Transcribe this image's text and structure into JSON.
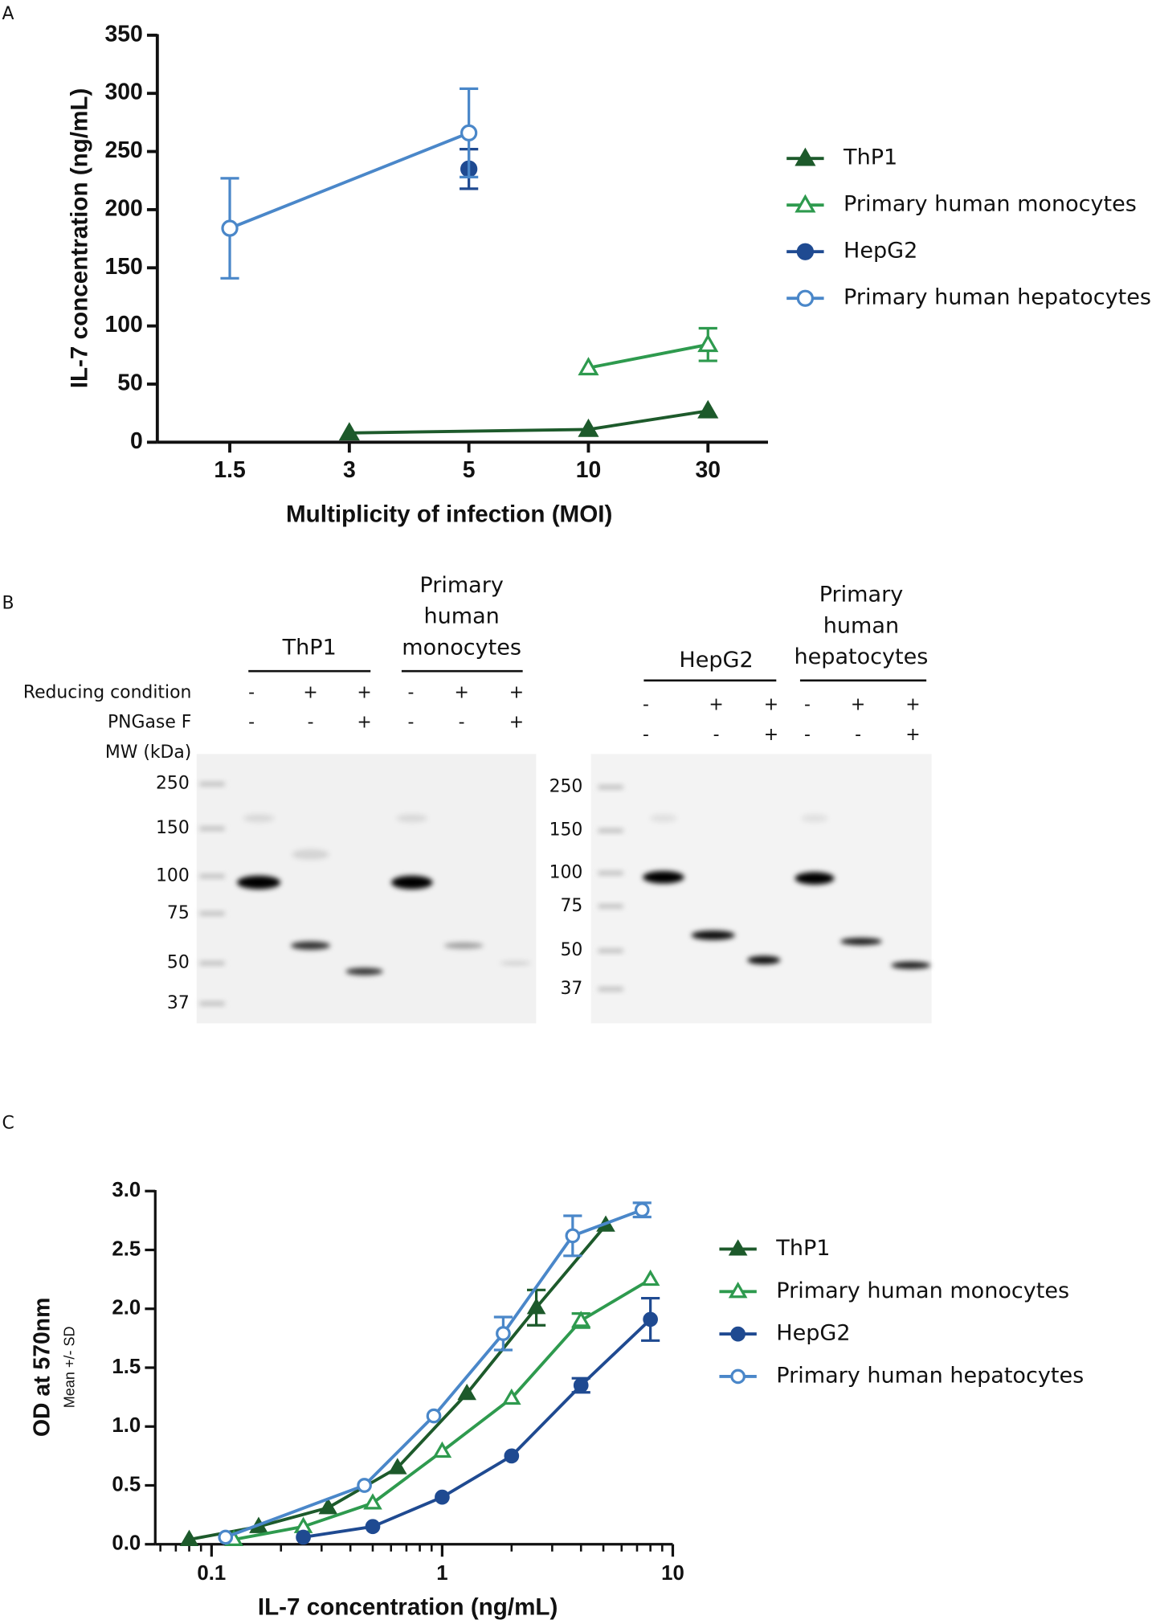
{
  "panel_labels": [
    "A",
    "B",
    "C"
  ],
  "chart_data": [
    {
      "type": "line",
      "x_label": "Multiplicity of infection (MOI)",
      "y_label": "IL-7 concentration (ng/mL)",
      "categories": [
        "1.5",
        "3",
        "5",
        "10",
        "30"
      ],
      "ylim": [
        0,
        350
      ],
      "yticks": [
        0,
        50,
        100,
        150,
        200,
        250,
        300,
        350
      ],
      "series": [
        {
          "name": "ThP1",
          "color": "#1d5a2b",
          "marker": "triangle",
          "filled": true,
          "x": [
            "3",
            "10",
            "30"
          ],
          "values": [
            8,
            11,
            27
          ]
        },
        {
          "name": "Primary human monocytes",
          "color": "#2e9a4e",
          "marker": "triangle",
          "filled": false,
          "x": [
            "10",
            "30"
          ],
          "values": [
            64,
            84
          ],
          "errors": [
            null,
            14
          ]
        },
        {
          "name": "HepG2",
          "color": "#1f4a91",
          "marker": "circle",
          "filled": true,
          "x": [
            "5"
          ],
          "values": [
            235
          ],
          "errors": [
            17
          ]
        },
        {
          "name": "Primary human hepatocytes",
          "color": "#4a87c9",
          "marker": "circle",
          "filled": false,
          "x": [
            "1.5",
            "5"
          ],
          "values": [
            184,
            266
          ],
          "errors": [
            43,
            38
          ]
        }
      ]
    },
    {
      "type": "line",
      "xscale": "log",
      "x_label": "IL-7 concentration (ng/mL)",
      "y_label": "OD at 570nm",
      "y_sublabel": "Mean +/- SD",
      "xlim": [
        0.057,
        10
      ],
      "xticks": [
        0.1,
        1,
        10
      ],
      "xminorticks": [
        0.06,
        0.07,
        0.08,
        0.09,
        0.2,
        0.3,
        0.4,
        0.5,
        0.6,
        0.7,
        0.8,
        0.9,
        2,
        3,
        4,
        5,
        6,
        7,
        8,
        9
      ],
      "ylim": [
        0,
        3
      ],
      "yticks": [
        {
          "value": 0,
          "label": "0.0"
        },
        {
          "value": 0.5,
          "label": "0.5"
        },
        {
          "value": 1,
          "label": "1.0"
        },
        {
          "value": 1.5,
          "label": "1.5"
        },
        {
          "value": 2,
          "label": "2.0"
        },
        {
          "value": 2.5,
          "label": "2.5"
        },
        {
          "value": 3,
          "label": "3.0"
        }
      ],
      "series": [
        {
          "name": "ThP1",
          "color": "#1d5a2b",
          "marker": "triangle",
          "filled": true,
          "x": [
            0.08,
            0.16,
            0.32,
            0.64,
            1.28,
            2.56,
            5.12
          ],
          "values": [
            0.04,
            0.15,
            0.31,
            0.65,
            1.28,
            2.01,
            2.71
          ],
          "errors": [
            null,
            null,
            null,
            null,
            null,
            0.15,
            null
          ]
        },
        {
          "name": "Primary human monocytes",
          "color": "#2e9a4e",
          "marker": "triangle",
          "filled": false,
          "x": [
            0.125,
            0.25,
            0.5,
            1,
            2,
            4,
            8
          ],
          "values": [
            0.04,
            0.15,
            0.35,
            0.79,
            1.24,
            1.9,
            2.25
          ],
          "errors": [
            null,
            null,
            null,
            null,
            null,
            0.06,
            null
          ]
        },
        {
          "name": "HepG2",
          "color": "#1f4a91",
          "marker": "circle",
          "filled": true,
          "x": [
            0.25,
            0.5,
            1,
            2,
            4,
            8
          ],
          "values": [
            0.06,
            0.15,
            0.4,
            0.75,
            1.35,
            1.91
          ],
          "errors": [
            null,
            null,
            null,
            null,
            0.06,
            0.18
          ]
        },
        {
          "name": "Primary human hepatocytes",
          "color": "#4a87c9",
          "marker": "circle",
          "filled": false,
          "x": [
            0.115,
            0.46,
            0.92,
            1.84,
            3.68,
            7.36
          ],
          "values": [
            0.06,
            0.5,
            1.09,
            1.79,
            2.62,
            2.84
          ],
          "errors": [
            null,
            null,
            null,
            0.14,
            0.17,
            0.06
          ]
        }
      ]
    }
  ],
  "blot": {
    "row_labels": [
      "Reducing condition",
      "PNGase F",
      "MW (kDa)"
    ],
    "gels": [
      {
        "groups": [
          {
            "lines": [
              "ThP1"
            ]
          },
          {
            "lines": [
              "Primary",
              "human",
              "monocytes"
            ]
          }
        ],
        "reducing": [
          "-",
          "+",
          "+",
          "-",
          "+",
          "+"
        ],
        "pngase": [
          "-",
          "-",
          "+",
          "-",
          "-",
          "+"
        ],
        "mw": [
          250,
          150,
          100,
          75,
          50,
          37
        ]
      },
      {
        "groups": [
          {
            "lines": [
              "HepG2"
            ]
          },
          {
            "lines": [
              "Primary",
              "human",
              "hepatocytes"
            ]
          }
        ],
        "reducing": [
          "-",
          "+",
          "+",
          "-",
          "+",
          "+"
        ],
        "pngase": [
          "-",
          "-",
          "+",
          "-",
          "-",
          "+"
        ],
        "mw": [
          250,
          150,
          100,
          75,
          50,
          37
        ]
      }
    ]
  }
}
